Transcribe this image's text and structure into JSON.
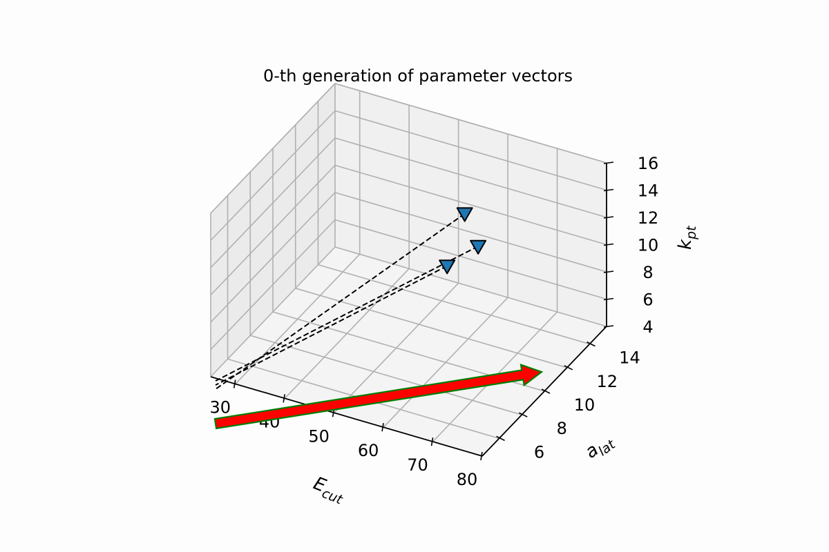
{
  "chart_data": {
    "type": "scatter",
    "projection": "3d",
    "title": "0-th generation of parameter vectors",
    "xlabel_main": "E",
    "xlabel_sub": "cut",
    "ylabel_main": "a",
    "ylabel_sub": "lat",
    "zlabel_main": "k",
    "zlabel_sub": "pt",
    "x_ticks": [
      "30",
      "40",
      "50",
      "60",
      "70",
      "80"
    ],
    "y_ticks": [
      "6",
      "8",
      "10",
      "12",
      "14"
    ],
    "z_ticks": [
      "4",
      "6",
      "8",
      "10",
      "12",
      "14",
      "16"
    ],
    "grid": true,
    "marker": "triangle-down",
    "marker_color": "#1f77b4",
    "points": [
      {
        "x": 62,
        "y": 12,
        "z": 11
      },
      {
        "x": 58,
        "y": 11,
        "z": 10
      },
      {
        "x": 57,
        "y": 13,
        "z": 12
      }
    ],
    "trajectories": "dashed black lines from each point toward the viewer",
    "arrow": {
      "color": "#ff0000",
      "edge_color": "#008000"
    }
  }
}
